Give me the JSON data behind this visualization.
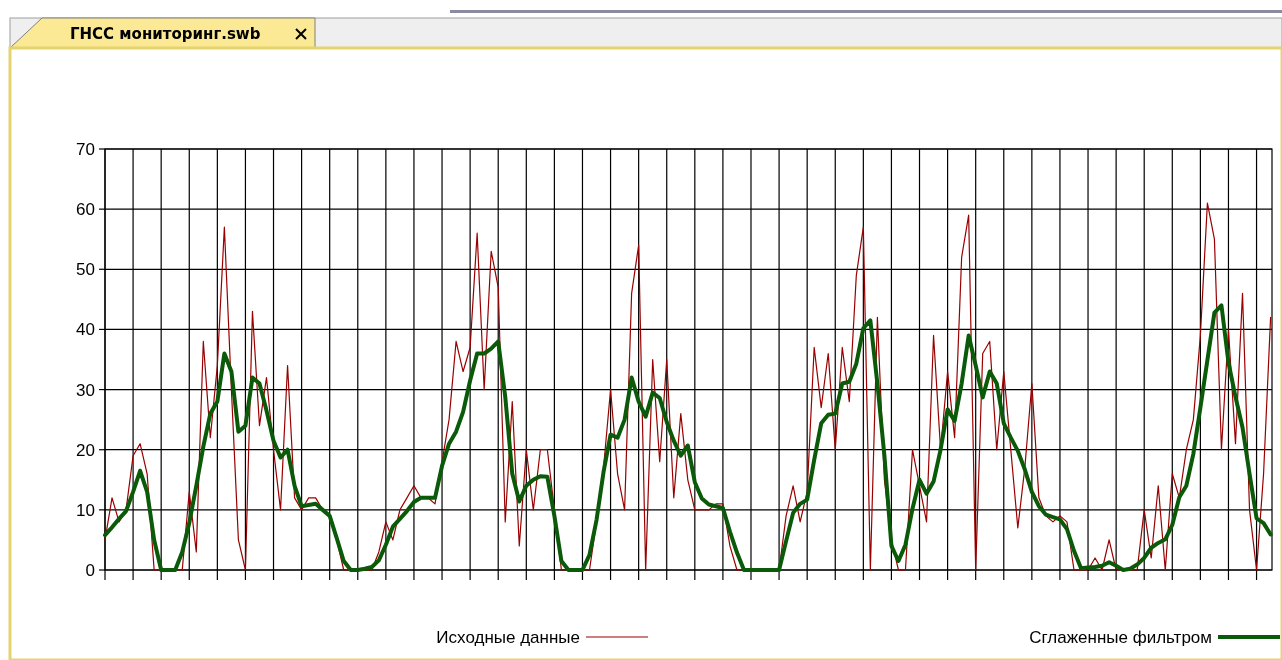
{
  "chart_data": {
    "type": "line",
    "title": "ГНСС мониторинг.swb",
    "categories": [
      null,
      null,
      null,
      null,
      null,
      null,
      null,
      null,
      null,
      null,
      null,
      null,
      null,
      null,
      null,
      null,
      null,
      null,
      null,
      null,
      null,
      null,
      null,
      null,
      null,
      null,
      null,
      null,
      null,
      null,
      null,
      null,
      null,
      null,
      null,
      null,
      null,
      null,
      null,
      null,
      null,
      null,
      null,
      null,
      null,
      null,
      null,
      null,
      null,
      null,
      null,
      null,
      null,
      null,
      null,
      null,
      null,
      null,
      null,
      null,
      null,
      null,
      null,
      null,
      null,
      null,
      null,
      null,
      null,
      null,
      null,
      null,
      null,
      null,
      null,
      null,
      null,
      null,
      null,
      null,
      null,
      null,
      null,
      null,
      null,
      null,
      null,
      null,
      null,
      null,
      null,
      null,
      null,
      null,
      null,
      null,
      null,
      null,
      null,
      null,
      null,
      null,
      null,
      null,
      null,
      null,
      null,
      null,
      null,
      null,
      null,
      null,
      null,
      null,
      null,
      null,
      null,
      null,
      null,
      null,
      null,
      null,
      null,
      null,
      null,
      null,
      null,
      null,
      null,
      null,
      null,
      null,
      null,
      null,
      null,
      null,
      null,
      null,
      null,
      null,
      null,
      null,
      null,
      null,
      null,
      null,
      null,
      null,
      null,
      null,
      null,
      null,
      null,
      null,
      null,
      null,
      null,
      null,
      null,
      null,
      null,
      null,
      null,
      null,
      null,
      null,
      null
    ],
    "ylim": [
      0,
      70
    ],
    "yticks": [
      0,
      10,
      20,
      30,
      40,
      50,
      60,
      70
    ],
    "grid": true,
    "legend": "bottom",
    "tick_labels": "y",
    "line_style": "solid",
    "series": [
      {
        "name": "Исходные данные",
        "color": "#990000",
        "values": [
          5,
          12,
          8,
          10,
          19,
          21,
          16,
          0,
          0,
          0,
          0,
          0,
          13,
          3,
          38,
          22,
          34,
          57,
          30,
          5,
          0,
          43,
          24,
          32,
          20,
          10,
          34,
          12,
          10,
          12,
          12,
          10,
          9,
          5,
          0,
          0,
          0,
          0,
          0,
          3,
          8,
          5,
          10,
          12,
          14,
          12,
          12,
          11,
          18,
          25,
          38,
          33,
          37,
          56,
          30,
          53,
          47,
          8,
          28,
          4,
          20,
          10,
          20,
          20,
          10,
          0,
          0,
          0,
          0,
          0,
          8,
          17,
          30,
          16,
          10,
          46,
          54,
          0,
          35,
          18,
          35,
          12,
          26,
          15,
          10,
          10,
          10,
          11,
          11,
          4,
          0,
          0,
          0,
          0,
          0,
          0,
          0,
          9,
          14,
          8,
          13,
          37,
          27,
          36,
          20,
          37,
          28,
          49,
          57,
          0,
          42,
          15,
          5,
          0,
          0,
          20,
          14,
          8,
          39,
          20,
          33,
          22,
          52,
          59,
          0,
          36,
          38,
          20,
          33,
          20,
          7,
          17,
          31,
          12,
          9,
          8,
          9,
          8,
          0,
          0,
          0,
          2,
          0,
          5,
          0,
          0,
          0,
          0,
          10,
          2,
          14,
          0,
          16,
          12,
          20,
          25,
          39,
          61,
          55,
          20,
          40,
          21,
          46,
          10,
          0,
          16,
          42
        ]
      },
      {
        "name": "Сглаженные фильтром",
        "color": "#0a5a0a",
        "values": [
          5.8,
          7.1,
          8.5,
          9.8,
          13,
          16.5,
          13,
          5,
          0,
          0,
          0,
          3,
          7.8,
          14,
          20.5,
          26,
          28,
          36,
          33,
          23,
          24,
          32,
          31,
          26.5,
          21.5,
          18.7,
          20,
          14,
          10.6,
          10.8,
          11,
          10,
          9,
          5.3,
          1.5,
          0,
          0,
          0.2,
          0.5,
          1.6,
          4.2,
          7.2,
          8.5,
          9.8,
          11.3,
          12,
          12,
          12,
          17.3,
          21,
          23,
          26.3,
          31.5,
          36,
          36,
          36.8,
          38,
          28.8,
          16,
          11.4,
          14,
          15,
          15.6,
          15.5,
          9,
          1.5,
          0,
          0,
          0,
          2.5,
          8.3,
          16.3,
          22.5,
          22,
          25,
          32,
          28,
          25.5,
          29.5,
          28.6,
          24.6,
          21.5,
          19,
          20.7,
          14.6,
          11.9,
          10.9,
          10.6,
          10.3,
          6.4,
          2.9,
          0,
          0,
          0,
          0,
          0,
          0,
          4.8,
          9.5,
          11,
          11.7,
          18.3,
          24.4,
          25.8,
          26,
          31,
          31.3,
          34.3,
          40.2,
          41.5,
          31,
          19,
          4,
          1.5,
          4.2,
          10.2,
          15,
          12.7,
          14.7,
          20,
          26.7,
          24.8,
          31,
          39,
          34,
          28.7,
          33,
          31,
          24.4,
          22,
          19.8,
          16.7,
          13,
          10.6,
          9.2,
          8.8,
          8.4,
          6.8,
          3.2,
          0.3,
          0.4,
          0.5,
          0.7,
          1.3,
          0.7,
          0,
          0.2,
          0.9,
          2,
          3.7,
          4.5,
          5.1,
          7.5,
          12.1,
          14,
          19.3,
          27,
          34.9,
          42.8,
          44,
          34.5,
          28.8,
          23.7,
          16,
          8.6,
          7.8,
          5.9
        ]
      }
    ]
  }
}
